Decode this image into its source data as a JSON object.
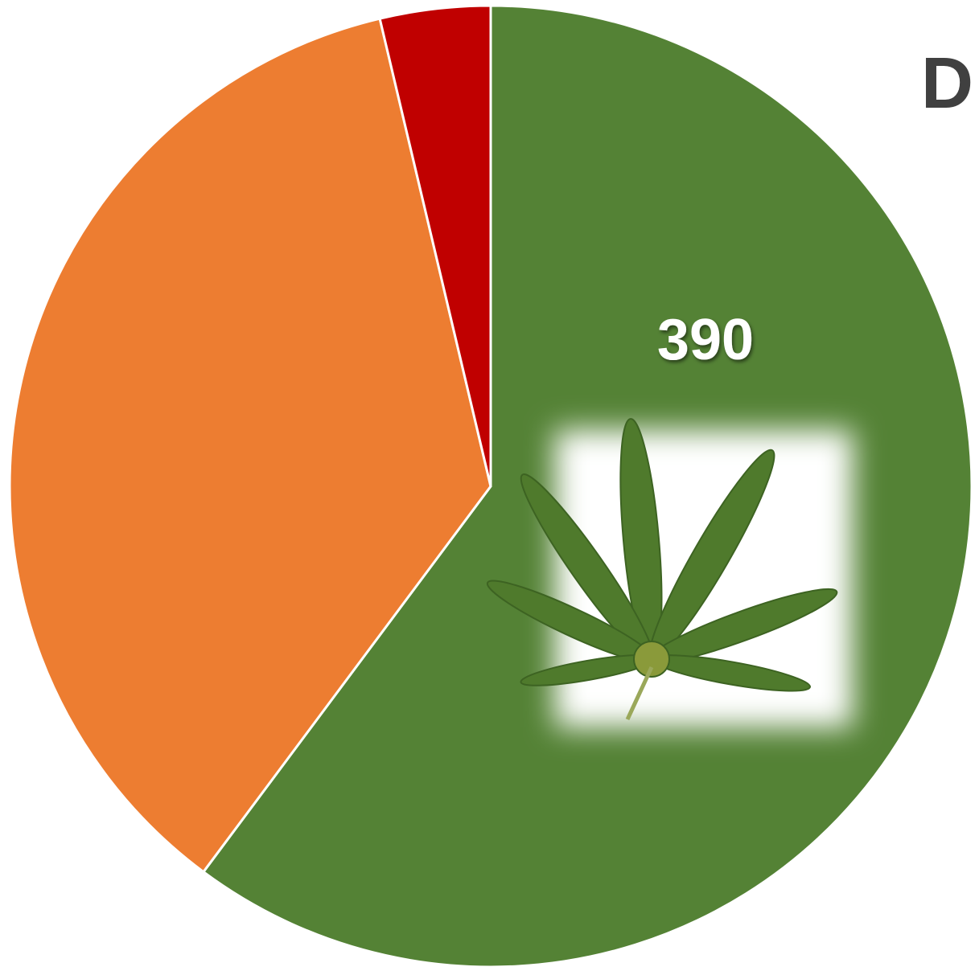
{
  "chart_data": {
    "type": "pie",
    "title": "D",
    "categories": [
      null,
      null,
      null
    ],
    "values": [
      390,
      234,
      24
    ],
    "colors": [
      "#548235",
      "#ed7d31",
      "#c00000"
    ]
  }
}
